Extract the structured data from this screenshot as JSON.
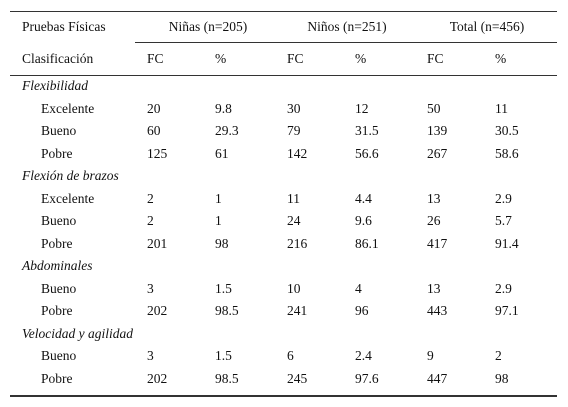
{
  "header": {
    "group_label": "Pruebas Físicas",
    "groups": [
      "Niñas (n=205)",
      "Niños (n=251)",
      "Total (n=456)"
    ],
    "row_label": "Clasificación",
    "columns": [
      "FC",
      "%",
      "FC",
      "%",
      "FC",
      "%"
    ]
  },
  "sections": [
    {
      "title": "Flexibilidad",
      "rows": [
        {
          "label": "Excelente",
          "cells": [
            20,
            9.8,
            30,
            12,
            50,
            11
          ]
        },
        {
          "label": "Bueno",
          "cells": [
            60,
            29.3,
            79,
            31.5,
            139,
            30.5
          ]
        },
        {
          "label": "Pobre",
          "cells": [
            125,
            61,
            142,
            56.6,
            267,
            58.6
          ]
        }
      ]
    },
    {
      "title": "Flexión de brazos",
      "rows": [
        {
          "label": "Excelente",
          "cells": [
            2,
            1,
            11,
            4.4,
            13,
            2.9
          ]
        },
        {
          "label": "Bueno",
          "cells": [
            2,
            1,
            24,
            9.6,
            26,
            5.7
          ]
        },
        {
          "label": "Pobre",
          "cells": [
            201,
            98,
            216,
            86.1,
            417,
            91.4
          ]
        }
      ]
    },
    {
      "title": "Abdominales",
      "rows": [
        {
          "label": "Bueno",
          "cells": [
            3,
            1.5,
            10,
            4,
            13,
            2.9
          ]
        },
        {
          "label": "Pobre",
          "cells": [
            202,
            98.5,
            241,
            96,
            443,
            97.1
          ]
        }
      ]
    },
    {
      "title": "Velocidad y agilidad",
      "rows": [
        {
          "label": "Bueno",
          "cells": [
            3,
            1.5,
            6,
            2.4,
            9,
            2
          ]
        },
        {
          "label": "Pobre",
          "cells": [
            202,
            98.5,
            245,
            97.6,
            447,
            98
          ]
        }
      ]
    }
  ]
}
